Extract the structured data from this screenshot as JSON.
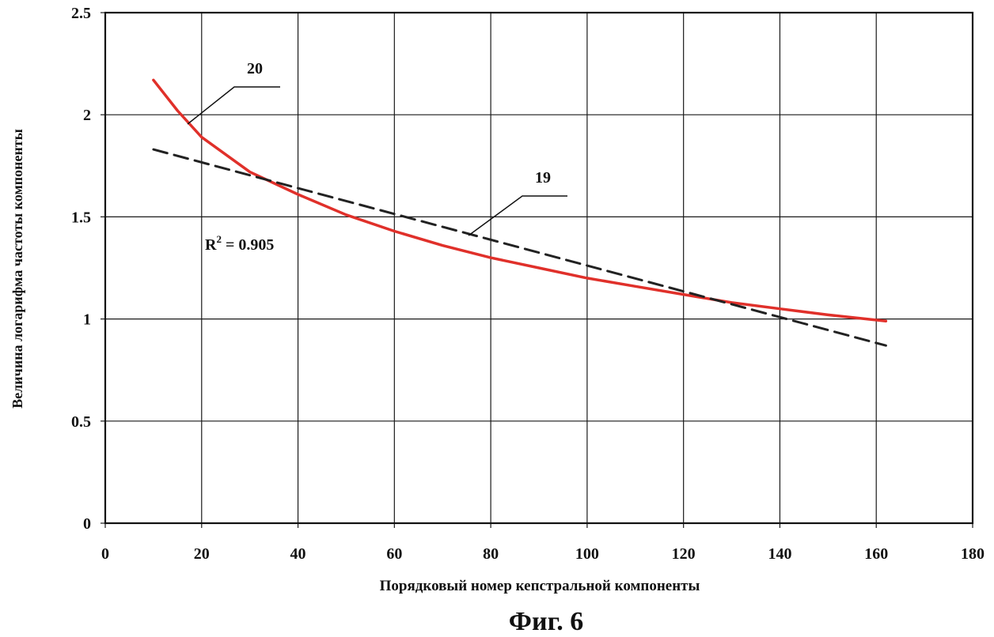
{
  "chart_data": {
    "type": "line",
    "figure_caption": "Фиг. 6",
    "xlabel": "Порядковый номер кепстральной компоненты",
    "ylabel": "Величина логарифма частоты компоненты",
    "xlim": [
      0,
      180
    ],
    "ylim": [
      0,
      2.5
    ],
    "x_ticks": [
      "0",
      "20",
      "40",
      "60",
      "80",
      "100",
      "120",
      "140",
      "160",
      "180"
    ],
    "y_ticks": [
      "0",
      "0.5",
      "1",
      "1.5",
      "2",
      "2.5"
    ],
    "grid": true,
    "series": [
      {
        "ref_label": "20",
        "color": "#e0302a",
        "style": "solid",
        "x": [
          10,
          15,
          20,
          30,
          40,
          50,
          60,
          70,
          80,
          90,
          100,
          110,
          120,
          130,
          140,
          150,
          162
        ],
        "y": [
          2.17,
          2.02,
          1.89,
          1.72,
          1.61,
          1.51,
          1.43,
          1.36,
          1.3,
          1.25,
          1.2,
          1.16,
          1.12,
          1.08,
          1.05,
          1.02,
          0.99
        ]
      },
      {
        "ref_label": "19",
        "color": "#222222",
        "style": "dashed",
        "x": [
          10,
          162
        ],
        "y": [
          1.83,
          0.87
        ]
      }
    ],
    "annotations": [
      {
        "label_key": "r2",
        "text": "R",
        "superscript": "2",
        "suffix": " = 0.905"
      }
    ]
  }
}
